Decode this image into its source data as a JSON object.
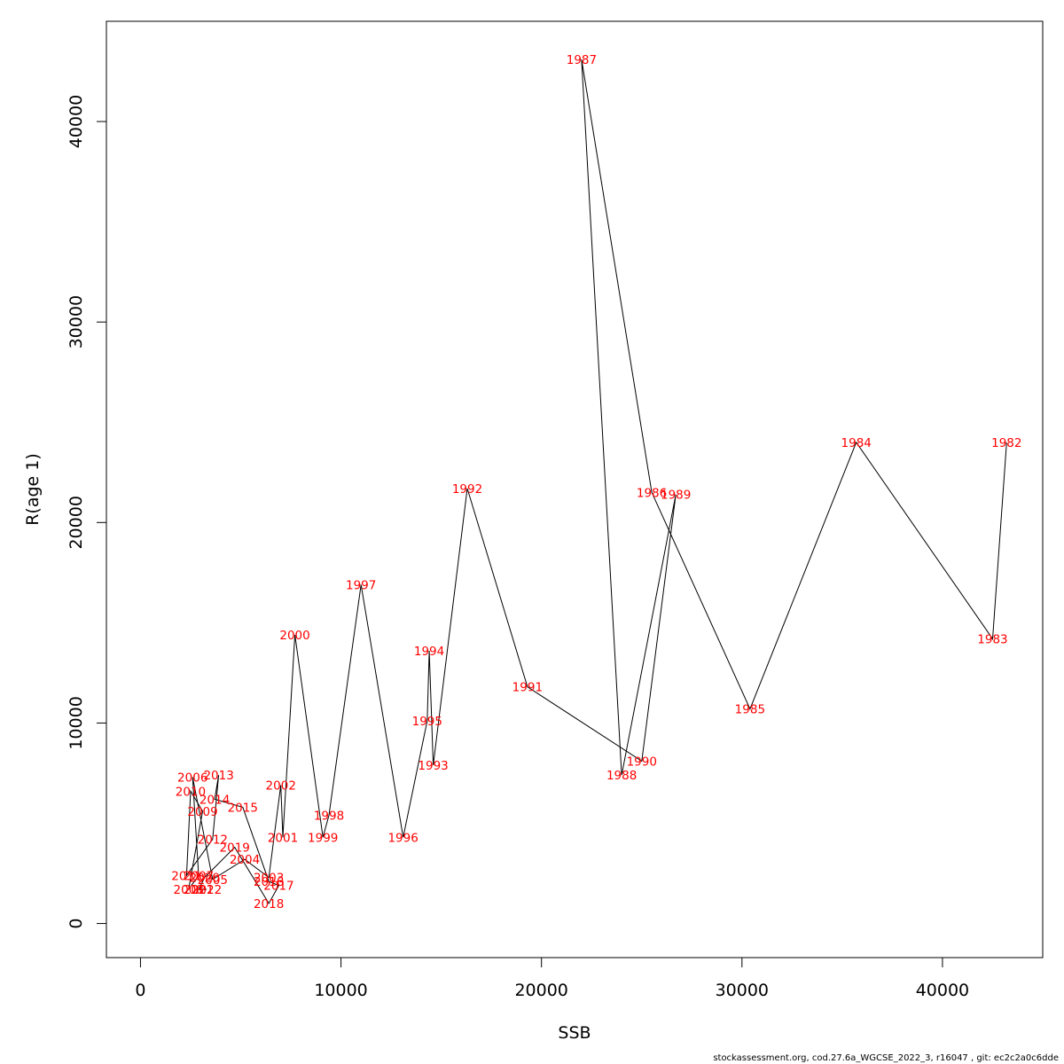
{
  "chart_data": {
    "type": "line",
    "xlabel": "SSB",
    "ylabel": "R(age 1)",
    "xlim": [
      -1700,
      45000
    ],
    "ylim": [
      -1700,
      45000
    ],
    "x_ticks": [
      0,
      10000,
      20000,
      30000,
      40000
    ],
    "y_ticks": [
      0,
      10000,
      20000,
      30000,
      40000
    ],
    "line_color": "#000000",
    "label_color": "#ff0000",
    "points": [
      {
        "label": "1982",
        "x": 43200,
        "y": 24000
      },
      {
        "label": "1983",
        "x": 42500,
        "y": 14200
      },
      {
        "label": "1984",
        "x": 35700,
        "y": 24000
      },
      {
        "label": "1985",
        "x": 30400,
        "y": 10700
      },
      {
        "label": "1986",
        "x": 25500,
        "y": 21500
      },
      {
        "label": "1987",
        "x": 22000,
        "y": 43100
      },
      {
        "label": "1988",
        "x": 24000,
        "y": 7400
      },
      {
        "label": "1989",
        "x": 26700,
        "y": 21400
      },
      {
        "label": "1990",
        "x": 25000,
        "y": 8100
      },
      {
        "label": "1991",
        "x": 19300,
        "y": 11800
      },
      {
        "label": "1992",
        "x": 16300,
        "y": 21700
      },
      {
        "label": "1993",
        "x": 14600,
        "y": 7900
      },
      {
        "label": "1994",
        "x": 14400,
        "y": 13600
      },
      {
        "label": "1995",
        "x": 14300,
        "y": 10100
      },
      {
        "label": "1996",
        "x": 13100,
        "y": 4300
      },
      {
        "label": "1997",
        "x": 11000,
        "y": 16900
      },
      {
        "label": "1998",
        "x": 9400,
        "y": 5400
      },
      {
        "label": "1999",
        "x": 9100,
        "y": 4300
      },
      {
        "label": "2000",
        "x": 7700,
        "y": 14400
      },
      {
        "label": "2001",
        "x": 7100,
        "y": 4300
      },
      {
        "label": "2002",
        "x": 7000,
        "y": 6900
      },
      {
        "label": "2003",
        "x": 6400,
        "y": 2300
      },
      {
        "label": "2004",
        "x": 5200,
        "y": 3200
      },
      {
        "label": "2005",
        "x": 3600,
        "y": 2200
      },
      {
        "label": "2006",
        "x": 2600,
        "y": 7300
      },
      {
        "label": "2007",
        "x": 2900,
        "y": 2400
      },
      {
        "label": "2008",
        "x": 2400,
        "y": 1700
      },
      {
        "label": "2009",
        "x": 3100,
        "y": 5600
      },
      {
        "label": "2010",
        "x": 2500,
        "y": 6600
      },
      {
        "label": "2011",
        "x": 2300,
        "y": 2400
      },
      {
        "label": "2012",
        "x": 3600,
        "y": 4200
      },
      {
        "label": "2013",
        "x": 3900,
        "y": 7400
      },
      {
        "label": "2014",
        "x": 3700,
        "y": 6200
      },
      {
        "label": "2015",
        "x": 5100,
        "y": 5800
      },
      {
        "label": "2016",
        "x": 6400,
        "y": 2100
      },
      {
        "label": "2017",
        "x": 6900,
        "y": 1900
      },
      {
        "label": "2018",
        "x": 6400,
        "y": 1000
      },
      {
        "label": "2019",
        "x": 4700,
        "y": 3800
      },
      {
        "label": "2020",
        "x": 3200,
        "y": 2300
      },
      {
        "label": "2021",
        "x": 2900,
        "y": 1700
      },
      {
        "label": "2022",
        "x": 3300,
        "y": 1700
      }
    ]
  },
  "footer_text": "stockassessment.org, cod.27.6a_WGCSE_2022_3, r16047 , git: ec2c2a0c6dde"
}
